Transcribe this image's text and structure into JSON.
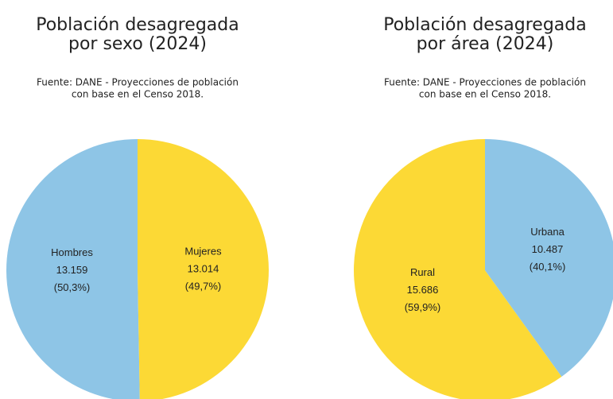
{
  "chart_data": [
    {
      "type": "pie",
      "title": [
        "Población desagregada",
        "por sexo (2024)"
      ],
      "subtitle": [
        "Fuente: DANE - Proyecciones de población",
        "con base en el Censo 2018."
      ],
      "categories": [
        "Hombres",
        "Mujeres"
      ],
      "values": [
        13159,
        13014
      ],
      "value_labels": [
        "13.159",
        "13.014"
      ],
      "percents": [
        50.3,
        49.7
      ],
      "percent_labels": [
        "(50,3%)",
        "(49,7%)"
      ],
      "colors": [
        "#8ec5e6",
        "#fcd935"
      ]
    },
    {
      "type": "pie",
      "title": [
        "Población desagregada",
        "por área (2024)"
      ],
      "subtitle": [
        "Fuente: DANE - Proyecciones de población",
        "con base en el Censo 2018."
      ],
      "categories": [
        "Rural",
        "Urbana"
      ],
      "values": [
        15686,
        10487
      ],
      "value_labels": [
        "15.686",
        "10.487"
      ],
      "percents": [
        59.9,
        40.1
      ],
      "percent_labels": [
        "(59,9%)",
        "(40,1%)"
      ],
      "colors": [
        "#fcd935",
        "#8ec5e6"
      ]
    }
  ]
}
